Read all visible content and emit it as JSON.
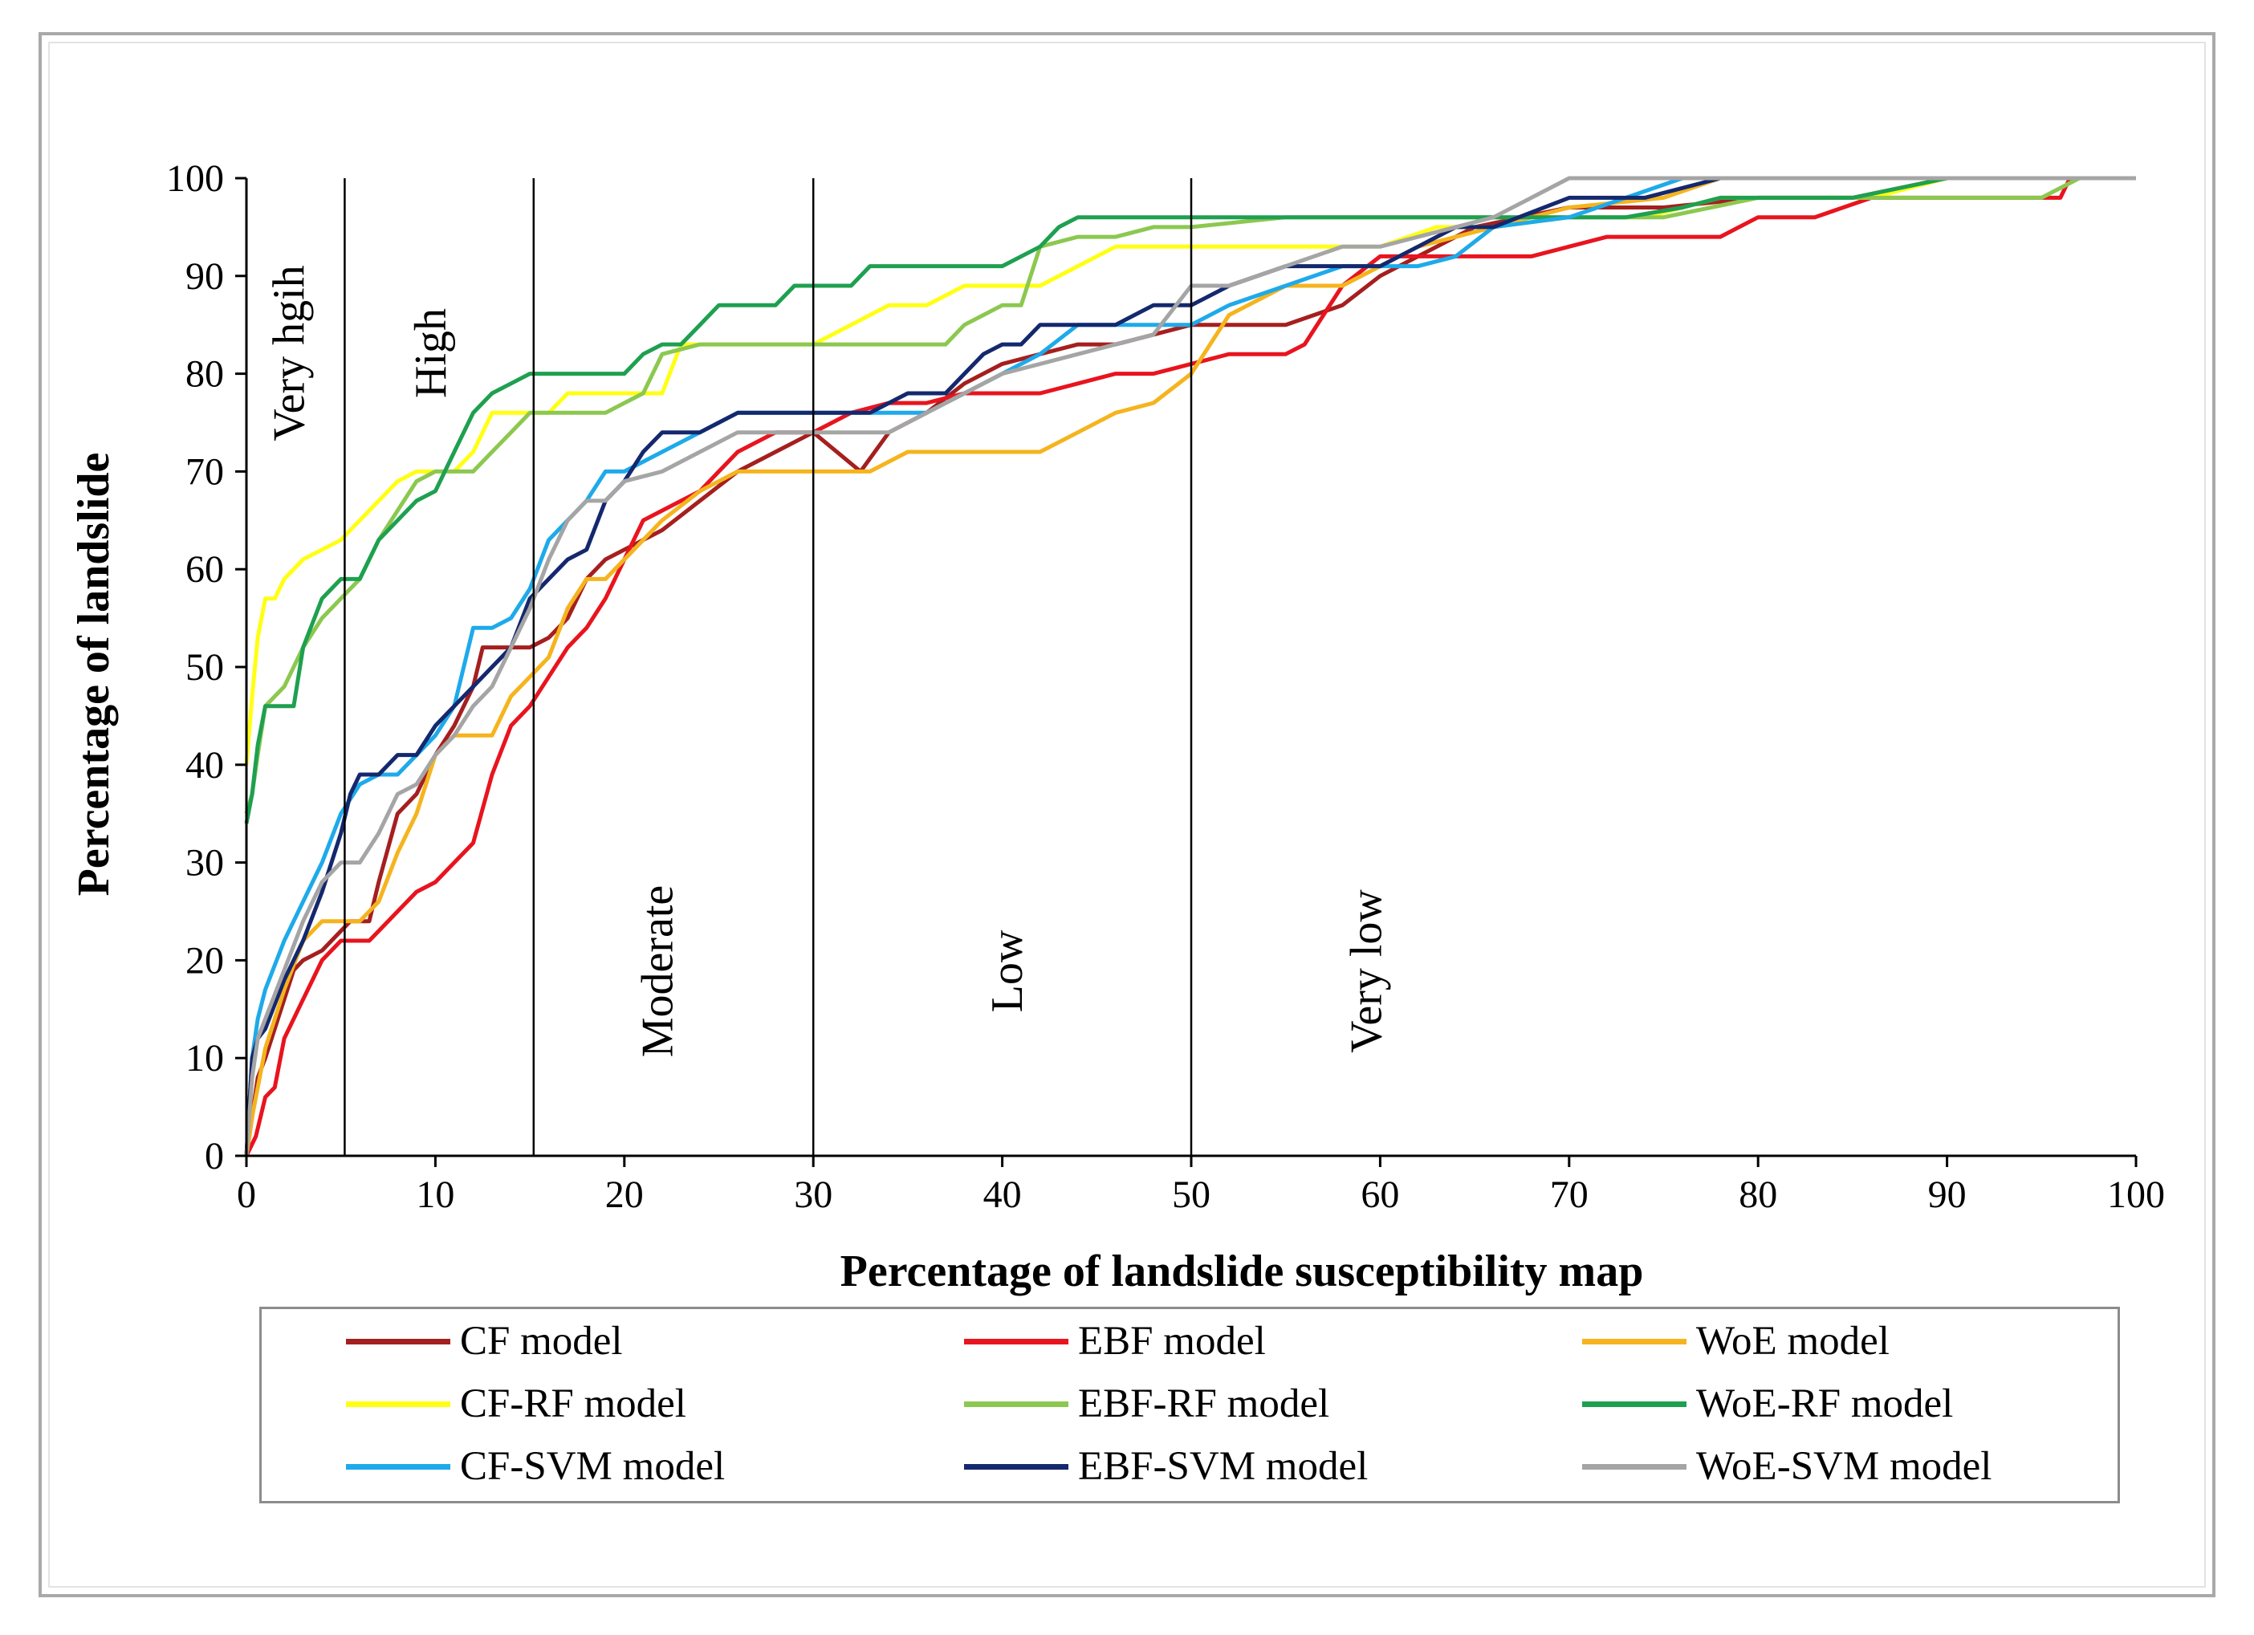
{
  "chart_data": {
    "type": "line",
    "title": "",
    "xlabel": "Percentage of landslide susceptibility map",
    "ylabel": "Percentage of landslide",
    "xlim": [
      0,
      100
    ],
    "ylim": [
      0,
      100
    ],
    "xticks": [
      "0",
      "10",
      "20",
      "30",
      "40",
      "50",
      "60",
      "70",
      "80",
      "90",
      "100"
    ],
    "yticks": [
      "0",
      "10",
      "20",
      "30",
      "40",
      "50",
      "60",
      "70",
      "80",
      "90",
      "100"
    ],
    "grid": false,
    "legend_position": "bottom",
    "zones": [
      {
        "label": "Very hgih",
        "x_from": 0,
        "x_to": 5.2
      },
      {
        "label": "High",
        "x_from": 5.2,
        "x_to": 15.2
      },
      {
        "label": "Moderate",
        "x_from": 15.2,
        "x_to": 30
      },
      {
        "label": "Low",
        "x_from": 30,
        "x_to": 50
      },
      {
        "label": "Very low",
        "x_from": 50,
        "x_to": 100
      }
    ],
    "zone_boundaries": [
      5.2,
      15.2,
      30,
      50
    ],
    "series": [
      {
        "name": "CF model",
        "color": "#a51f1f",
        "x": [
          0,
          0.3,
          0.6,
          1,
          1.5,
          2,
          2.5,
          3,
          4,
          5,
          5.5,
          6,
          6.5,
          7,
          8,
          9,
          10,
          11,
          12,
          12.5,
          13,
          14,
          15,
          16,
          17,
          18,
          19,
          20,
          22,
          24,
          26,
          28,
          30,
          32.5,
          34,
          36,
          38,
          40,
          42,
          44,
          46,
          48,
          50,
          52,
          55,
          58,
          60,
          62,
          65,
          70,
          75,
          80,
          85,
          90,
          95,
          100
        ],
        "y": [
          0,
          4,
          8,
          10,
          13,
          16,
          19,
          20,
          21,
          23,
          24,
          24,
          24,
          28,
          35,
          37,
          41,
          44,
          48,
          52,
          52,
          52,
          52,
          53,
          55,
          59,
          61,
          62,
          64,
          67,
          70,
          72,
          74,
          70,
          74,
          76,
          79,
          81,
          82,
          83,
          83,
          84,
          85,
          85,
          85,
          87,
          90,
          92,
          95,
          97,
          97,
          98,
          98,
          100,
          100,
          100
        ]
      },
      {
        "name": "EBF model",
        "color": "#e8141e",
        "x": [
          0,
          0.5,
          1,
          1.5,
          2,
          3,
          4,
          5,
          6,
          6.5,
          7,
          8,
          9,
          10,
          11,
          12,
          13,
          14,
          15,
          16,
          17,
          18,
          19,
          20,
          21,
          22,
          24,
          26,
          28,
          30,
          32,
          34,
          36,
          38,
          40,
          42,
          44,
          46,
          48,
          50,
          52,
          55,
          56,
          58,
          60,
          62,
          65,
          68,
          72,
          75,
          78,
          80,
          83,
          86,
          88,
          90,
          93,
          96,
          96.5,
          100
        ],
        "y": [
          0,
          2,
          6,
          7,
          12,
          16,
          20,
          22,
          22,
          22,
          23,
          25,
          27,
          28,
          30,
          32,
          39,
          44,
          46,
          49,
          52,
          54,
          57,
          61,
          65,
          66,
          68,
          72,
          74,
          74,
          76,
          77,
          77,
          78,
          78,
          78,
          79,
          80,
          80,
          81,
          82,
          82,
          83,
          89,
          92,
          92,
          92,
          92,
          94,
          94,
          94,
          96,
          96,
          98,
          98,
          98,
          98,
          98,
          100,
          100
        ]
      },
      {
        "name": "WoE model",
        "color": "#f5b41e",
        "x": [
          0,
          0.3,
          0.7,
          1,
          2,
          3,
          4,
          5,
          6,
          7,
          8,
          9,
          10,
          11,
          12,
          13,
          14,
          15,
          16,
          17,
          18,
          19,
          20,
          21,
          22,
          24,
          26,
          28,
          30,
          33,
          35,
          38,
          42,
          44,
          46,
          48,
          50,
          52,
          55,
          58,
          60,
          62,
          66,
          70,
          75,
          78,
          80,
          90,
          100
        ],
        "y": [
          0,
          4,
          8,
          11,
          17,
          22,
          24,
          24,
          24,
          26,
          31,
          35,
          41,
          43,
          43,
          43,
          47,
          49,
          51,
          56,
          59,
          59,
          61,
          63,
          65,
          68,
          70,
          70,
          70,
          70,
          72,
          72,
          72,
          74,
          76,
          77,
          80,
          86,
          89,
          89,
          91,
          93,
          95,
          97,
          98,
          100,
          100,
          100,
          100
        ]
      },
      {
        "name": "CF-RF model",
        "color": "#ffff14",
        "x": [
          0,
          0.3,
          0.6,
          1,
          1.5,
          2,
          3,
          4,
          5,
          6,
          7,
          8,
          9,
          10,
          11,
          12,
          13,
          14,
          15,
          16,
          17,
          18,
          20,
          22,
          23,
          26,
          28,
          30,
          32,
          34,
          36,
          38,
          40,
          42,
          44,
          46,
          48,
          50,
          53,
          56,
          60,
          63,
          66,
          70,
          74,
          78,
          82,
          86,
          90,
          95,
          100
        ],
        "y": [
          40,
          47,
          53,
          57,
          57,
          59,
          61,
          62,
          63,
          65,
          67,
          69,
          70,
          70,
          70,
          72,
          76,
          76,
          76,
          76,
          78,
          78,
          78,
          78,
          83,
          83,
          83,
          83,
          85,
          87,
          87,
          89,
          89,
          89,
          91,
          93,
          93,
          93,
          93,
          93,
          93,
          95,
          95,
          96,
          96,
          98,
          98,
          98,
          100,
          100,
          100
        ]
      },
      {
        "name": "EBF-RF model",
        "color": "#8cc850",
        "x": [
          0,
          0.3,
          0.6,
          1,
          2,
          3,
          4,
          5,
          6,
          7,
          8,
          9,
          10,
          11,
          12,
          13,
          14,
          15,
          16,
          17,
          18,
          19,
          20,
          21,
          22,
          24,
          26,
          28,
          30,
          33,
          35,
          37,
          38,
          39,
          40,
          41,
          42,
          44,
          46,
          48,
          50,
          55,
          60,
          65,
          70,
          75,
          80,
          85,
          90,
          95,
          97,
          100
        ],
        "y": [
          35,
          37,
          41,
          46,
          48,
          52,
          55,
          57,
          59,
          63,
          66,
          69,
          70,
          70,
          70,
          72,
          74,
          76,
          76,
          76,
          76,
          76,
          77,
          78,
          82,
          83,
          83,
          83,
          83,
          83,
          83,
          83,
          85,
          86,
          87,
          87,
          93,
          94,
          94,
          95,
          95,
          96,
          96,
          96,
          96,
          96,
          98,
          98,
          98,
          98,
          100,
          100
        ]
      },
      {
        "name": "WoE-RF model",
        "color": "#1ea050",
        "x": [
          0,
          0.3,
          0.6,
          1,
          1.5,
          2,
          2.5,
          3,
          4,
          5,
          6,
          6.5,
          7,
          8,
          9,
          10,
          11,
          12,
          13,
          14,
          15,
          16,
          18,
          20,
          21,
          22,
          23,
          24,
          25,
          26,
          28,
          29,
          30,
          32,
          33,
          36,
          40,
          42,
          43,
          44,
          46,
          48,
          50,
          55,
          60,
          62,
          65,
          68,
          70,
          73,
          76,
          78,
          80,
          85,
          90,
          95,
          100
        ],
        "y": [
          34,
          37,
          42,
          46,
          46,
          46,
          46,
          52,
          57,
          59,
          59,
          61,
          63,
          65,
          67,
          68,
          72,
          76,
          78,
          79,
          80,
          80,
          80,
          80,
          82,
          83,
          83,
          85,
          87,
          87,
          87,
          89,
          89,
          89,
          91,
          91,
          91,
          93,
          95,
          96,
          96,
          96,
          96,
          96,
          96,
          96,
          96,
          96,
          96,
          96,
          97,
          98,
          98,
          98,
          100,
          100,
          100
        ]
      },
      {
        "name": "CF-SVM model",
        "color": "#1eaaea",
        "x": [
          0,
          0.3,
          0.6,
          1,
          2,
          3,
          4,
          5,
          6,
          7,
          8,
          9,
          10,
          11,
          12,
          13,
          14,
          15,
          16,
          17,
          18,
          19,
          20,
          22,
          24,
          26,
          28,
          30,
          32,
          34,
          36,
          38,
          40,
          42,
          44,
          46,
          48,
          50,
          52,
          55,
          58,
          60,
          62,
          64,
          66,
          70,
          73,
          76,
          78,
          80,
          85,
          90,
          95,
          100
        ],
        "y": [
          0,
          10,
          14,
          17,
          22,
          26,
          30,
          35,
          38,
          39,
          39,
          41,
          43,
          46,
          54,
          54,
          55,
          58,
          63,
          65,
          67,
          70,
          70,
          72,
          74,
          76,
          76,
          76,
          76,
          76,
          76,
          78,
          80,
          82,
          85,
          85,
          85,
          85,
          87,
          89,
          91,
          91,
          91,
          92,
          95,
          96,
          98,
          100,
          100,
          100,
          100,
          100,
          100,
          100
        ]
      },
      {
        "name": "EBF-SVM model",
        "color": "#14286e",
        "x": [
          0,
          0.3,
          0.6,
          1,
          2,
          3,
          4,
          5,
          5.5,
          6,
          7,
          8,
          9,
          10,
          11,
          12,
          13,
          14,
          15,
          16,
          17,
          18,
          19,
          20,
          21,
          22,
          24,
          26,
          28,
          30,
          33,
          35,
          37,
          38,
          39,
          40,
          41,
          42,
          44,
          46,
          48,
          50,
          52,
          55,
          58,
          60,
          62,
          64,
          66,
          70,
          74,
          78,
          80,
          90,
          100
        ],
        "y": [
          0,
          10,
          12,
          13,
          18,
          22,
          27,
          33,
          37,
          39,
          39,
          41,
          41,
          44,
          46,
          48,
          50,
          52,
          57,
          59,
          61,
          62,
          67,
          69,
          72,
          74,
          74,
          76,
          76,
          76,
          76,
          78,
          78,
          80,
          82,
          83,
          83,
          85,
          85,
          85,
          87,
          87,
          89,
          91,
          91,
          91,
          93,
          95,
          95,
          98,
          98,
          100,
          100,
          100,
          100
        ]
      },
      {
        "name": "WoE-SVM model",
        "color": "#a5a5a5",
        "x": [
          0,
          0.3,
          0.6,
          1,
          2,
          3,
          4,
          5,
          6,
          7,
          8,
          9,
          10,
          11,
          12,
          13,
          14,
          15,
          16,
          17,
          18,
          19,
          20,
          22,
          24,
          26,
          28,
          30,
          32,
          34,
          36,
          38,
          40,
          42,
          44,
          46,
          48,
          50,
          52,
          55,
          58,
          60,
          62,
          64,
          66,
          68,
          70,
          72,
          75,
          78,
          80,
          90,
          100
        ],
        "y": [
          0,
          8,
          12,
          14,
          19,
          24,
          28,
          30,
          30,
          33,
          37,
          38,
          41,
          43,
          46,
          48,
          52,
          56,
          61,
          65,
          67,
          67,
          69,
          70,
          72,
          74,
          74,
          74,
          74,
          74,
          76,
          78,
          80,
          81,
          82,
          83,
          84,
          89,
          89,
          91,
          93,
          93,
          94,
          95,
          96,
          98,
          100,
          100,
          100,
          100,
          100,
          100,
          100
        ]
      }
    ]
  }
}
